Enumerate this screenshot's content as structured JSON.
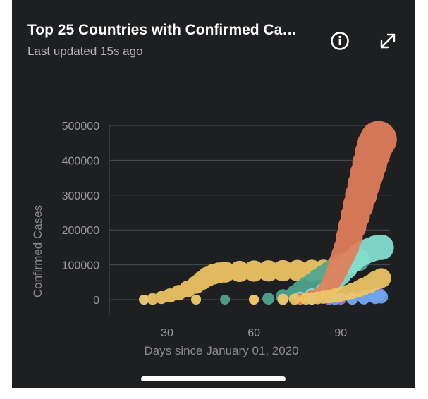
{
  "header": {
    "title": "Top 25 Countries with Confirmed Ca…",
    "subtitle": "Last updated 15s ago",
    "info_icon": "info-circle-icon",
    "expand_icon": "expand-diagonal-icon"
  },
  "chart_data": {
    "type": "scatter",
    "title": "",
    "xlabel": "Days since January 01, 2020",
    "ylabel": "Confirmed Cases",
    "xlim": [
      10,
      107
    ],
    "ylim": [
      0,
      500000
    ],
    "xticks": [
      30,
      60,
      90
    ],
    "yticks": [
      0,
      100000,
      200000,
      300000,
      400000,
      500000
    ],
    "grid": "horizontal",
    "legend": "none",
    "series": [
      {
        "color": "#f2c764",
        "x": [
          22,
          25,
          28,
          31,
          34,
          37,
          40,
          42,
          44,
          46,
          48,
          50,
          55,
          60,
          65,
          70,
          75,
          80,
          84,
          88
        ],
        "y": [
          0,
          2000,
          6000,
          12000,
          20000,
          30000,
          43000,
          55000,
          66000,
          73000,
          77000,
          79000,
          81000,
          82000,
          82500,
          83000,
          83500,
          83800,
          84000,
          84200
        ]
      },
      {
        "color": "#4fa78f",
        "x": [
          22,
          40,
          50,
          60,
          65,
          70,
          74,
          76,
          78,
          80,
          82,
          84,
          86,
          88,
          90,
          92,
          94,
          96
        ],
        "y": [
          0,
          0,
          0,
          0,
          3000,
          10000,
          20000,
          30000,
          40000,
          50000,
          60000,
          70000,
          80000,
          90000,
          100000,
          105000,
          110000,
          115000
        ]
      },
      {
        "color": "#86e3d3",
        "x": [
          22,
          60,
          70,
          76,
          80,
          84,
          86,
          88,
          90,
          92,
          94,
          96,
          98,
          100,
          102,
          104
        ],
        "y": [
          0,
          0,
          1000,
          5000,
          12000,
          25000,
          35000,
          50000,
          70000,
          90000,
          110000,
          125000,
          135000,
          142000,
          148000,
          150000
        ]
      },
      {
        "color": "#e37f5b",
        "x": [
          22,
          60,
          70,
          76,
          80,
          82,
          84,
          85,
          86,
          87,
          88,
          89,
          90,
          91,
          92,
          93,
          94,
          95,
          96,
          97,
          98,
          99,
          100,
          101,
          102,
          103
        ],
        "y": [
          0,
          0,
          500,
          2000,
          8000,
          12000,
          20000,
          30000,
          40000,
          55000,
          70000,
          90000,
          110000,
          130000,
          150000,
          180000,
          210000,
          240000,
          270000,
          300000,
          330000,
          360000,
          390000,
          420000,
          445000,
          460000
        ]
      },
      {
        "color": "#9a7de0",
        "x": [
          22,
          70,
          80,
          86,
          90,
          94,
          98,
          101,
          103
        ],
        "y": [
          0,
          0,
          500,
          1500,
          3000,
          5000,
          8000,
          11000,
          14000
        ]
      },
      {
        "color": "#6fa7ef",
        "x": [
          22,
          70,
          80,
          88,
          94,
          98,
          102,
          104
        ],
        "y": [
          0,
          0,
          200,
          1000,
          2500,
          4000,
          6000,
          8000
        ]
      },
      {
        "color": "#f0c766",
        "x": [
          22,
          40,
          60,
          70,
          74,
          78,
          80,
          82,
          84,
          86,
          88,
          90,
          92,
          94,
          96,
          98,
          100,
          102,
          104
        ],
        "y": [
          0,
          0,
          0,
          500,
          1200,
          2500,
          3500,
          5000,
          7000,
          9000,
          12000,
          15000,
          20000,
          25000,
          30000,
          38000,
          45000,
          55000,
          62000
        ]
      }
    ]
  }
}
